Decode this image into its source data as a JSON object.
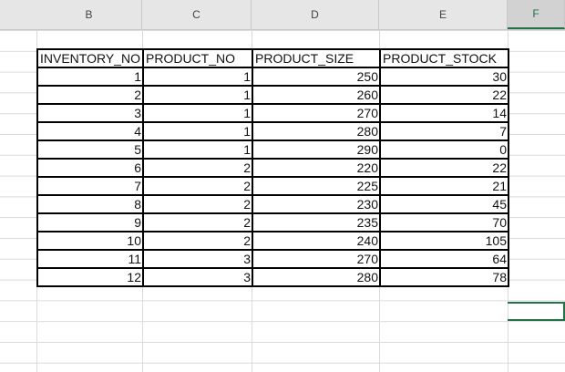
{
  "column_headers": [
    "B",
    "C",
    "D",
    "E",
    "F"
  ],
  "selected_column": "F",
  "table": {
    "headers": [
      "INVENTORY_NO",
      "PRODUCT_NO",
      "PRODUCT_SIZE",
      "PRODUCT_STOCK"
    ],
    "rows": [
      [
        "1",
        "1",
        "250",
        "30"
      ],
      [
        "2",
        "1",
        "260",
        "22"
      ],
      [
        "3",
        "1",
        "270",
        "14"
      ],
      [
        "4",
        "1",
        "280",
        "7"
      ],
      [
        "5",
        "1",
        "290",
        "0"
      ],
      [
        "6",
        "2",
        "220",
        "22"
      ],
      [
        "7",
        "2",
        "225",
        "21"
      ],
      [
        "8",
        "2",
        "230",
        "45"
      ],
      [
        "9",
        "2",
        "235",
        "70"
      ],
      [
        "10",
        "2",
        "240",
        "105"
      ],
      [
        "11",
        "3",
        "270",
        "64"
      ],
      [
        "12",
        "3",
        "280",
        "78"
      ]
    ]
  },
  "colors": {
    "accent": "#217346",
    "header_bg": "#e6e6e6",
    "gridline": "#dadada"
  }
}
